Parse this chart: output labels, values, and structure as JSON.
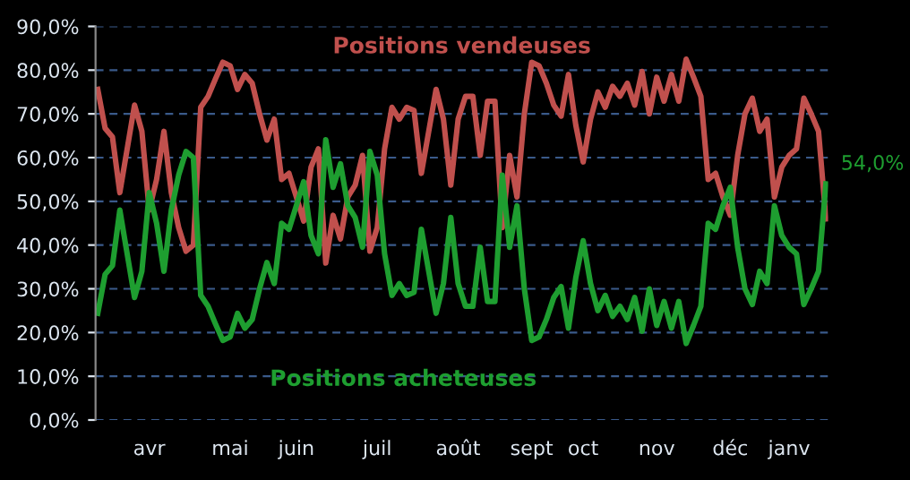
{
  "chart_data": {
    "type": "line",
    "categories": [
      null,
      null,
      null,
      null,
      null,
      null,
      null,
      "avr",
      null,
      null,
      null,
      null,
      null,
      null,
      null,
      null,
      null,
      null,
      "mai",
      null,
      null,
      null,
      null,
      null,
      null,
      null,
      null,
      "juin",
      null,
      null,
      null,
      null,
      null,
      null,
      null,
      null,
      null,
      null,
      "juil",
      null,
      null,
      null,
      null,
      null,
      null,
      null,
      null,
      null,
      null,
      "août",
      null,
      null,
      null,
      null,
      null,
      null,
      null,
      null,
      null,
      "sept",
      null,
      null,
      null,
      null,
      null,
      null,
      "oct",
      null,
      null,
      null,
      null,
      null,
      null,
      null,
      null,
      null,
      "nov",
      null,
      null,
      null,
      null,
      null,
      null,
      null,
      null,
      null,
      "déc",
      null,
      null,
      null,
      null,
      null,
      null,
      null,
      "janv",
      null,
      null,
      null,
      null,
      null
    ],
    "series": [
      {
        "name": "Positions vendeuses",
        "color": "#c0504d",
        "values": [
          75.6,
          66.7,
          64.7,
          52,
          62,
          72,
          66,
          48,
          55,
          66,
          52,
          44,
          38.6,
          40,
          71.5,
          74,
          78,
          81.8,
          81,
          75.6,
          79,
          77,
          70,
          64,
          68.8,
          55,
          56.4,
          51,
          45.5,
          57.8,
          62,
          35.9,
          46.8,
          41.4,
          51,
          53.7,
          60.5,
          38.6,
          44,
          62,
          71.5,
          68.8,
          71.5,
          70.8,
          56.4,
          66,
          75.6,
          68.8,
          53.7,
          68.8,
          74,
          74,
          60.5,
          72.9,
          72.9,
          44,
          60.5,
          51,
          70,
          81.8,
          81,
          77,
          72,
          69.5,
          79,
          67.4,
          59,
          68.8,
          75,
          71.5,
          76.3,
          74,
          77,
          72,
          79.7,
          70,
          78.4,
          72.9,
          79,
          72.9,
          82.5,
          78.4,
          74,
          55,
          56.4,
          51,
          46.8,
          60.5,
          70,
          73.6,
          66,
          68.8,
          51,
          57.8,
          60.5,
          62,
          73.6,
          70,
          66,
          46
        ]
      },
      {
        "name": "Positions acheteuses",
        "color": "#1e9e30",
        "values": [
          24.4,
          33.3,
          35.3,
          48,
          38,
          28,
          34,
          52,
          45,
          34,
          48,
          56,
          61.4,
          60,
          28.5,
          26,
          22,
          18.2,
          19,
          24.4,
          21,
          23,
          30,
          36,
          31.2,
          45,
          43.6,
          49,
          54.5,
          42.2,
          38,
          64.1,
          53.2,
          58.6,
          49,
          46.3,
          39.5,
          61.4,
          56,
          38,
          28.5,
          31.2,
          28.5,
          29.2,
          43.6,
          34,
          24.4,
          31.2,
          46.3,
          31.2,
          26,
          26,
          39.5,
          27.1,
          27.1,
          56,
          39.5,
          49,
          30,
          18.2,
          19,
          23,
          28,
          30.5,
          21,
          32.6,
          41,
          31.2,
          25,
          28.5,
          23.7,
          26,
          23,
          28,
          20.3,
          30,
          21.6,
          27.1,
          21,
          27.1,
          17.5,
          21.6,
          26,
          45,
          43.6,
          49,
          53.2,
          39.5,
          30,
          26.4,
          34,
          31.2,
          49,
          42.2,
          39.5,
          38,
          26.4,
          30,
          34,
          54
        ],
        "value_labels": [
          null,
          null,
          null,
          null,
          null,
          null,
          null,
          null,
          null,
          null,
          null,
          null,
          null,
          null,
          null,
          null,
          null,
          null,
          null,
          null,
          null,
          null,
          null,
          null,
          null,
          null,
          null,
          null,
          null,
          null,
          null,
          null,
          null,
          null,
          null,
          null,
          null,
          null,
          null,
          null,
          null,
          null,
          null,
          null,
          null,
          null,
          null,
          null,
          null,
          null,
          null,
          null,
          null,
          null,
          null,
          null,
          null,
          null,
          null,
          null,
          null,
          null,
          null,
          null,
          null,
          null,
          null,
          null,
          null,
          null,
          null,
          null,
          null,
          null,
          null,
          null,
          null,
          null,
          null,
          null,
          null,
          null,
          null,
          null,
          null,
          null,
          null,
          null,
          null,
          null,
          null,
          null,
          null,
          null,
          null,
          null,
          null,
          null,
          null,
          "54,0%"
        ]
      }
    ],
    "ylim": [
      0,
      90
    ],
    "yticks": [
      {
        "value": 0,
        "label": "0,0%"
      },
      {
        "value": 10,
        "label": "10,0%"
      },
      {
        "value": 20,
        "label": "20,0%"
      },
      {
        "value": 30,
        "label": "30,0%"
      },
      {
        "value": 40,
        "label": "40,0%"
      },
      {
        "value": 50,
        "label": "50,0%"
      },
      {
        "value": 60,
        "label": "60,0%"
      },
      {
        "value": 70,
        "label": "70,0%"
      },
      {
        "value": 80,
        "label": "80,0%"
      },
      {
        "value": 90,
        "label": "90,0%"
      }
    ],
    "grid": "y",
    "legend": false,
    "marker": "none",
    "line_style": "solid"
  }
}
